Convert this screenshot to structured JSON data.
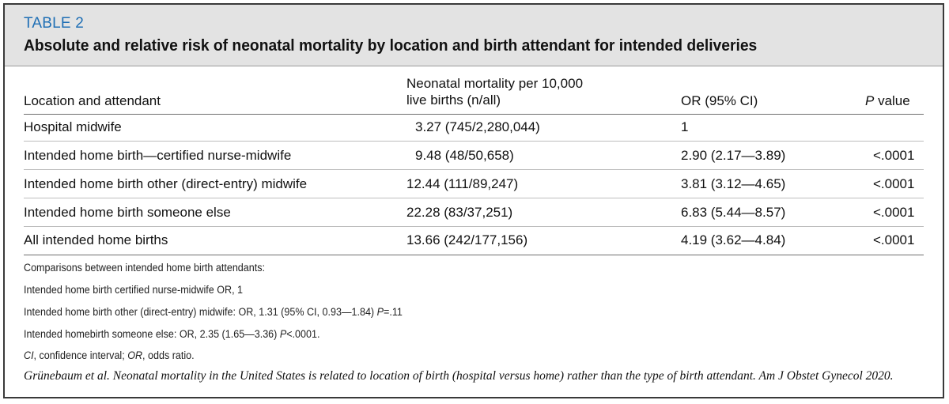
{
  "table_label": "TABLE 2",
  "title": "Absolute and relative risk of neonatal mortality by location and birth attendant for intended deliveries",
  "columns": {
    "location": "Location and attendant",
    "mortality_line1": "Neonatal mortality per 10,000",
    "mortality_line2": "live births (n/all)",
    "or": "OR (95% CI)",
    "p_italic": "P",
    "p_rest": " value"
  },
  "rows": [
    {
      "location": "Hospital midwife",
      "mortality": "3.27 (745/2,280,044)",
      "or": "1",
      "p": ""
    },
    {
      "location": "Intended home birth—certified nurse-midwife",
      "mortality": "9.48 (48/50,658)",
      "or": "2.90 (2.17—3.89)",
      "p": "<.0001"
    },
    {
      "location": "Intended home birth other (direct-entry) midwife",
      "mortality": "12.44 (111/89,247)",
      "or": "3.81 (3.12—4.65)",
      "p": "<.0001"
    },
    {
      "location": "Intended home birth someone else",
      "mortality": "22.28 (83/37,251)",
      "or": "6.83 (5.44—8.57)",
      "p": "<.0001"
    },
    {
      "location": "All intended home births",
      "mortality": "13.66 (242/177,156)",
      "or": "4.19 (3.62—4.84)",
      "p": "<.0001"
    }
  ],
  "notes": {
    "comparisons": "Comparisons between intended home birth attendants:",
    "cnm": "Intended home birth certified nurse-midwife OR, 1",
    "direct_entry_text": "Intended home birth other (direct-entry) midwife: OR, 1.31 (95% CI, 0.93—1.84) ",
    "direct_entry_p_italic": "P",
    "direct_entry_p_rest": "=.11",
    "someone_else_text": "Intended homebirth someone else: OR, 2.35 (1.65—3.36) ",
    "someone_else_p_italic": "P",
    "someone_else_p_rest": "<.0001.",
    "abbr_ci_italic": "CI",
    "abbr_ci_rest": ", confidence interval; ",
    "abbr_or_italic": "OR",
    "abbr_or_rest": ", odds ratio."
  },
  "citation": "Grünebaum et al. Neonatal mortality in the United States is related to location of birth (hospital versus home) rather than the type of birth attendant. Am J Obstet Gynecol 2020.",
  "colors": {
    "label_blue": "#1f6fb5",
    "header_gray": "#e3e3e3"
  }
}
